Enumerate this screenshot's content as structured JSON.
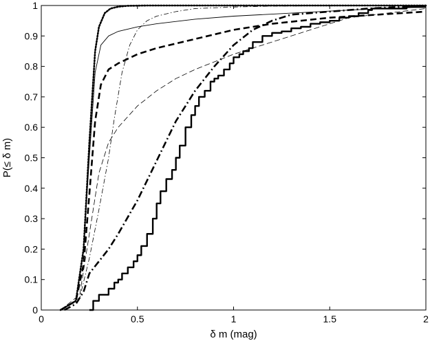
{
  "chart_data": {
    "type": "line",
    "title": "",
    "xlabel": "δ m (mag)",
    "ylabel": "P(≤ δ m)",
    "xlim": [
      0,
      2
    ],
    "ylim": [
      0,
      1
    ],
    "xticks": [
      0,
      0.5,
      1,
      1.5,
      2
    ],
    "xtick_labels": [
      "0",
      "0.5",
      "1",
      "1.5",
      "2"
    ],
    "yticks": [
      0,
      0.1,
      0.2,
      0.3,
      0.4,
      0.5,
      0.6,
      0.7,
      0.8,
      0.9,
      1
    ],
    "ytick_labels": [
      "0",
      "0.1",
      "0.2",
      "0.3",
      "0.4",
      "0.5",
      "0.6",
      "0.7",
      "0.8",
      "0.9",
      "1"
    ],
    "grid": false,
    "legend": "none",
    "series": [
      {
        "style": "dotted-thick",
        "x": [
          0.1,
          0.18,
          0.22,
          0.25,
          0.28,
          0.3,
          0.33,
          0.36,
          0.4,
          0.45,
          0.55,
          0.7,
          2.0
        ],
        "y": [
          0.0,
          0.03,
          0.2,
          0.55,
          0.85,
          0.93,
          0.975,
          0.99,
          0.996,
          0.999,
          1.0,
          1.0,
          1.0
        ]
      },
      {
        "style": "solid-thin",
        "x": [
          0.1,
          0.18,
          0.22,
          0.25,
          0.28,
          0.31,
          0.35,
          0.4,
          0.5,
          0.6,
          0.8,
          1.0,
          1.3,
          1.6,
          2.0
        ],
        "y": [
          0.0,
          0.03,
          0.2,
          0.5,
          0.78,
          0.87,
          0.9,
          0.915,
          0.93,
          0.94,
          0.955,
          0.965,
          0.975,
          0.985,
          0.995
        ]
      },
      {
        "style": "dashdot-thin",
        "x": [
          0.1,
          0.2,
          0.25,
          0.3,
          0.35,
          0.38,
          0.42,
          0.46,
          0.5,
          0.55,
          0.6,
          0.7,
          0.8,
          1.0,
          1.2,
          1.5,
          2.0
        ],
        "y": [
          0.0,
          0.04,
          0.17,
          0.33,
          0.5,
          0.63,
          0.78,
          0.87,
          0.92,
          0.95,
          0.965,
          0.98,
          0.99,
          0.995,
          0.998,
          0.999,
          1.0
        ]
      },
      {
        "style": "dashed-thick",
        "x": [
          0.1,
          0.18,
          0.22,
          0.25,
          0.28,
          0.31,
          0.35,
          0.4,
          0.5,
          0.6,
          0.8,
          1.0,
          1.2,
          1.5,
          1.75,
          2.0
        ],
        "y": [
          0.0,
          0.03,
          0.15,
          0.38,
          0.62,
          0.74,
          0.79,
          0.81,
          0.84,
          0.86,
          0.89,
          0.92,
          0.94,
          0.96,
          0.97,
          0.98
        ]
      },
      {
        "style": "dashed-thin",
        "x": [
          0.1,
          0.2,
          0.25,
          0.3,
          0.35,
          0.4,
          0.5,
          0.6,
          0.7,
          0.8,
          1.0,
          1.2,
          1.35,
          1.6,
          2.0
        ],
        "y": [
          0.0,
          0.05,
          0.25,
          0.45,
          0.55,
          0.6,
          0.67,
          0.72,
          0.76,
          0.79,
          0.84,
          0.88,
          0.91,
          0.96,
          0.99
        ]
      },
      {
        "style": "dashdot-thick",
        "x": [
          0.12,
          0.18,
          0.22,
          0.25,
          0.3,
          0.35,
          0.4,
          0.5,
          0.6,
          0.7,
          0.8,
          0.9,
          1.0,
          1.1,
          1.2,
          1.3,
          1.5,
          1.7,
          2.0
        ],
        "y": [
          0.0,
          0.02,
          0.06,
          0.12,
          0.16,
          0.2,
          0.25,
          0.36,
          0.49,
          0.62,
          0.72,
          0.8,
          0.87,
          0.92,
          0.95,
          0.97,
          0.98,
          0.99,
          1.0
        ]
      },
      {
        "style": "solid-thick-step",
        "x": [
          0.25,
          0.27,
          0.3,
          0.32,
          0.35,
          0.38,
          0.4,
          0.42,
          0.45,
          0.48,
          0.5,
          0.52,
          0.55,
          0.58,
          0.6,
          0.62,
          0.65,
          0.68,
          0.7,
          0.72,
          0.75,
          0.78,
          0.8,
          0.82,
          0.85,
          0.88,
          0.9,
          0.92,
          0.95,
          0.98,
          1.0,
          1.03,
          1.05,
          1.08,
          1.1,
          1.15,
          1.2,
          1.25,
          1.3,
          1.35,
          1.4,
          1.45,
          1.5,
          1.55,
          1.6,
          1.65,
          1.7,
          1.72,
          1.8,
          1.9,
          2.0
        ],
        "y": [
          0.0,
          0.03,
          0.05,
          0.05,
          0.07,
          0.09,
          0.1,
          0.12,
          0.14,
          0.16,
          0.18,
          0.21,
          0.25,
          0.3,
          0.35,
          0.39,
          0.43,
          0.46,
          0.5,
          0.54,
          0.6,
          0.64,
          0.67,
          0.7,
          0.72,
          0.75,
          0.76,
          0.77,
          0.79,
          0.81,
          0.83,
          0.84,
          0.85,
          0.86,
          0.88,
          0.9,
          0.91,
          0.915,
          0.925,
          0.93,
          0.94,
          0.945,
          0.95,
          0.96,
          0.965,
          0.975,
          0.985,
          0.99,
          0.99,
          0.995,
          0.995
        ]
      }
    ]
  }
}
